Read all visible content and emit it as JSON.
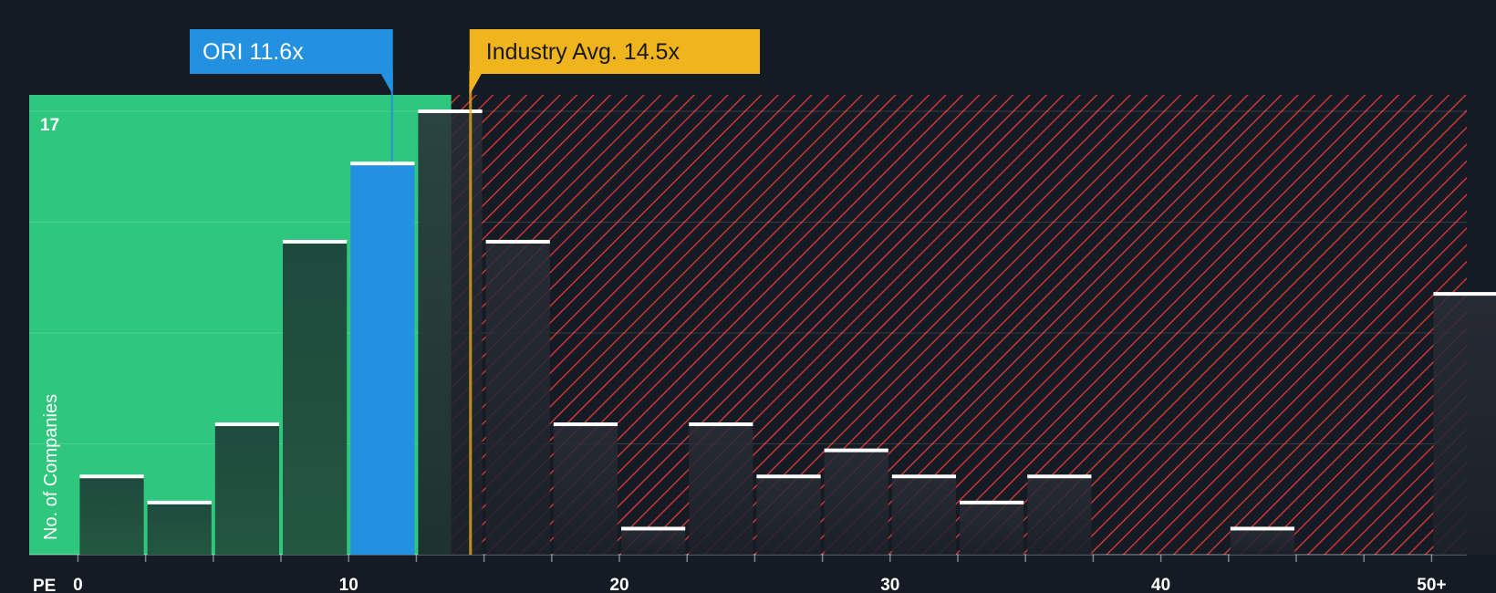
{
  "chart_data": {
    "type": "bar",
    "x_axis_label": "PE",
    "y_axis_label": "No. of Companies",
    "y_max_label": "17",
    "x_ticks": [
      "0",
      "10",
      "20",
      "30",
      "40",
      "50+"
    ],
    "x_tick_values": [
      0,
      10,
      20,
      30,
      40,
      50
    ],
    "bin_width": 2.5,
    "bins": [
      {
        "start": 0.0,
        "count": 3
      },
      {
        "start": 2.5,
        "count": 2
      },
      {
        "start": 5.0,
        "count": 5
      },
      {
        "start": 7.5,
        "count": 12
      },
      {
        "start": 10.0,
        "count": 15,
        "highlight": true
      },
      {
        "start": 12.5,
        "count": 17
      },
      {
        "start": 15.0,
        "count": 12
      },
      {
        "start": 17.5,
        "count": 5
      },
      {
        "start": 20.0,
        "count": 1
      },
      {
        "start": 22.5,
        "count": 5
      },
      {
        "start": 25.0,
        "count": 3
      },
      {
        "start": 27.5,
        "count": 4
      },
      {
        "start": 30.0,
        "count": 3
      },
      {
        "start": 32.5,
        "count": 2
      },
      {
        "start": 35.0,
        "count": 3
      },
      {
        "start": 37.5,
        "count": 0
      },
      {
        "start": 40.0,
        "count": 0
      },
      {
        "start": 42.5,
        "count": 1
      },
      {
        "start": 45.0,
        "count": 0
      },
      {
        "start": 47.5,
        "count": 0
      },
      {
        "start": 50.0,
        "count": 10
      }
    ],
    "y_range": [
      0,
      17
    ],
    "x_range": [
      -1.8,
      51.3
    ],
    "company": {
      "label": "ORI 11.6x",
      "value": 11.6
    },
    "industry": {
      "label": "Industry Avg. 14.5x",
      "value": 14.5
    },
    "colors": {
      "background": "#151b24",
      "undervalued_zone": "#2fc77d",
      "overvalued_hatch": "#d43a3a",
      "bar_dark": "#1e4a3c",
      "bar_highlight": "#2391e0",
      "company_label": "#2391e0",
      "industry_label": "#f0b41c",
      "bar_top_line": "#ffffff"
    }
  }
}
